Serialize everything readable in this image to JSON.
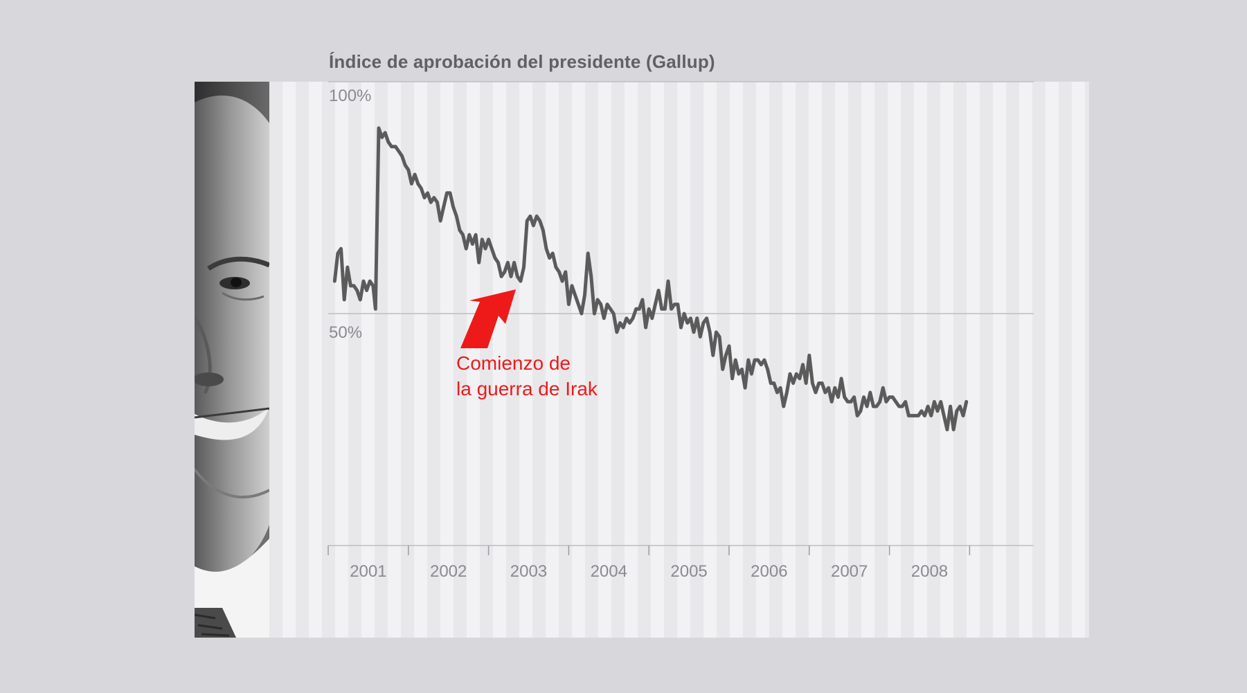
{
  "chart_data": {
    "type": "line",
    "title": "Índice de aprobación del presidente (Gallup)",
    "ylim": [
      0,
      100
    ],
    "y_ticks": [
      {
        "value": 100,
        "label": "100%"
      },
      {
        "value": 50,
        "label": "50%"
      }
    ],
    "x_range": [
      2001.0,
      2009.8
    ],
    "x_ticks": [
      2001,
      2002,
      2003,
      2004,
      2005,
      2006,
      2007,
      2008,
      2009
    ],
    "x_tick_labels": [
      "2001",
      "2002",
      "2003",
      "2004",
      "2005",
      "2006",
      "2007",
      "2008"
    ],
    "grid": "horizontal lines at 50% and 100%",
    "series": [
      {
        "color": "#5b5b5b",
        "points": [
          [
            2001.08,
            57
          ],
          [
            2001.12,
            63
          ],
          [
            2001.16,
            64
          ],
          [
            2001.2,
            53
          ],
          [
            2001.24,
            60
          ],
          [
            2001.28,
            56
          ],
          [
            2001.32,
            56
          ],
          [
            2001.36,
            55
          ],
          [
            2001.4,
            53
          ],
          [
            2001.44,
            57
          ],
          [
            2001.48,
            55
          ],
          [
            2001.52,
            57
          ],
          [
            2001.56,
            56
          ],
          [
            2001.59,
            51
          ],
          [
            2001.63,
            90
          ],
          [
            2001.67,
            88
          ],
          [
            2001.71,
            89
          ],
          [
            2001.75,
            87
          ],
          [
            2001.79,
            86
          ],
          [
            2001.84,
            86
          ],
          [
            2001.88,
            85
          ],
          [
            2001.92,
            84
          ],
          [
            2001.96,
            82
          ],
          [
            2002.0,
            81
          ],
          [
            2002.04,
            78
          ],
          [
            2002.08,
            80
          ],
          [
            2002.12,
            78
          ],
          [
            2002.16,
            77
          ],
          [
            2002.2,
            75
          ],
          [
            2002.24,
            76
          ],
          [
            2002.28,
            74
          ],
          [
            2002.32,
            75
          ],
          [
            2002.36,
            74
          ],
          [
            2002.4,
            70
          ],
          [
            2002.44,
            73
          ],
          [
            2002.48,
            76
          ],
          [
            2002.52,
            76
          ],
          [
            2002.56,
            73
          ],
          [
            2002.6,
            71
          ],
          [
            2002.64,
            68
          ],
          [
            2002.68,
            67
          ],
          [
            2002.72,
            64
          ],
          [
            2002.76,
            67
          ],
          [
            2002.8,
            65
          ],
          [
            2002.84,
            67
          ],
          [
            2002.88,
            61
          ],
          [
            2002.92,
            66
          ],
          [
            2002.96,
            64
          ],
          [
            2003.0,
            66
          ],
          [
            2003.04,
            64
          ],
          [
            2003.08,
            62
          ],
          [
            2003.12,
            61
          ],
          [
            2003.16,
            58
          ],
          [
            2003.2,
            59
          ],
          [
            2003.24,
            61
          ],
          [
            2003.28,
            58
          ],
          [
            2003.32,
            61
          ],
          [
            2003.36,
            58
          ],
          [
            2003.4,
            57
          ],
          [
            2003.44,
            60
          ],
          [
            2003.48,
            70
          ],
          [
            2003.52,
            71
          ],
          [
            2003.56,
            69
          ],
          [
            2003.6,
            71
          ],
          [
            2003.64,
            70
          ],
          [
            2003.68,
            68
          ],
          [
            2003.72,
            64
          ],
          [
            2003.76,
            62
          ],
          [
            2003.8,
            63
          ],
          [
            2003.84,
            60
          ],
          [
            2003.88,
            59
          ],
          [
            2003.92,
            57
          ],
          [
            2003.96,
            59
          ],
          [
            2004.0,
            52
          ],
          [
            2004.04,
            56
          ],
          [
            2004.08,
            54
          ],
          [
            2004.12,
            52
          ],
          [
            2004.16,
            50
          ],
          [
            2004.2,
            54
          ],
          [
            2004.24,
            63
          ],
          [
            2004.28,
            58
          ],
          [
            2004.32,
            50
          ],
          [
            2004.36,
            53
          ],
          [
            2004.4,
            52
          ],
          [
            2004.44,
            49
          ],
          [
            2004.48,
            52
          ],
          [
            2004.52,
            51
          ],
          [
            2004.56,
            50
          ],
          [
            2004.6,
            46
          ],
          [
            2004.64,
            48
          ],
          [
            2004.68,
            47
          ],
          [
            2004.72,
            49
          ],
          [
            2004.76,
            48
          ],
          [
            2004.8,
            49
          ],
          [
            2004.84,
            51
          ],
          [
            2004.88,
            51
          ],
          [
            2004.92,
            53
          ],
          [
            2004.96,
            47
          ],
          [
            2005.0,
            51
          ],
          [
            2005.04,
            49
          ],
          [
            2005.08,
            52
          ],
          [
            2005.12,
            55
          ],
          [
            2005.16,
            51
          ],
          [
            2005.2,
            51
          ],
          [
            2005.24,
            57
          ],
          [
            2005.28,
            51
          ],
          [
            2005.32,
            52
          ],
          [
            2005.36,
            52
          ],
          [
            2005.4,
            47
          ],
          [
            2005.44,
            50
          ],
          [
            2005.48,
            48
          ],
          [
            2005.52,
            49
          ],
          [
            2005.56,
            46
          ],
          [
            2005.6,
            49
          ],
          [
            2005.64,
            45
          ],
          [
            2005.68,
            48
          ],
          [
            2005.72,
            49
          ],
          [
            2005.76,
            46
          ],
          [
            2005.8,
            41
          ],
          [
            2005.84,
            46
          ],
          [
            2005.88,
            45
          ],
          [
            2005.92,
            38
          ],
          [
            2005.96,
            41
          ],
          [
            2006.0,
            43
          ],
          [
            2006.04,
            36
          ],
          [
            2006.08,
            40
          ],
          [
            2006.12,
            37
          ],
          [
            2006.16,
            38
          ],
          [
            2006.2,
            34
          ],
          [
            2006.24,
            40
          ],
          [
            2006.28,
            37
          ],
          [
            2006.32,
            40
          ],
          [
            2006.36,
            40
          ],
          [
            2006.4,
            39
          ],
          [
            2006.44,
            40
          ],
          [
            2006.48,
            38
          ],
          [
            2006.52,
            35
          ],
          [
            2006.56,
            35
          ],
          [
            2006.6,
            33
          ],
          [
            2006.64,
            34
          ],
          [
            2006.68,
            30
          ],
          [
            2006.72,
            33
          ],
          [
            2006.76,
            37
          ],
          [
            2006.8,
            35
          ],
          [
            2006.84,
            37
          ],
          [
            2006.88,
            36
          ],
          [
            2006.92,
            39
          ],
          [
            2006.96,
            35
          ],
          [
            2007.0,
            41
          ],
          [
            2007.04,
            35
          ],
          [
            2007.08,
            33
          ],
          [
            2007.12,
            35
          ],
          [
            2007.16,
            35
          ],
          [
            2007.2,
            33
          ],
          [
            2007.24,
            34
          ],
          [
            2007.28,
            31
          ],
          [
            2007.32,
            34
          ],
          [
            2007.36,
            32
          ],
          [
            2007.4,
            36
          ],
          [
            2007.44,
            32
          ],
          [
            2007.48,
            31
          ],
          [
            2007.52,
            31
          ],
          [
            2007.56,
            32
          ],
          [
            2007.6,
            28
          ],
          [
            2007.64,
            29
          ],
          [
            2007.68,
            32
          ],
          [
            2007.72,
            30
          ],
          [
            2007.76,
            33
          ],
          [
            2007.8,
            30
          ],
          [
            2007.84,
            30
          ],
          [
            2007.88,
            31
          ],
          [
            2007.92,
            34
          ],
          [
            2007.96,
            31
          ],
          [
            2008.0,
            32
          ],
          [
            2008.04,
            32
          ],
          [
            2008.08,
            31
          ],
          [
            2008.12,
            30
          ],
          [
            2008.16,
            30
          ],
          [
            2008.2,
            31
          ],
          [
            2008.24,
            28
          ],
          [
            2008.28,
            28
          ],
          [
            2008.32,
            28
          ],
          [
            2008.36,
            28
          ],
          [
            2008.4,
            29
          ],
          [
            2008.44,
            28
          ],
          [
            2008.48,
            30
          ],
          [
            2008.52,
            28
          ],
          [
            2008.56,
            31
          ],
          [
            2008.6,
            29
          ],
          [
            2008.64,
            31
          ],
          [
            2008.68,
            28
          ],
          [
            2008.72,
            25
          ],
          [
            2008.76,
            30
          ],
          [
            2008.8,
            25
          ],
          [
            2008.84,
            29
          ],
          [
            2008.88,
            30
          ],
          [
            2008.92,
            28
          ],
          [
            2008.96,
            31
          ]
        ]
      }
    ],
    "annotation": {
      "lines": [
        "Comienzo de",
        "la guerra de Irak"
      ],
      "color": "#ee1a1a"
    }
  },
  "photo_icon": "portrait-photo"
}
